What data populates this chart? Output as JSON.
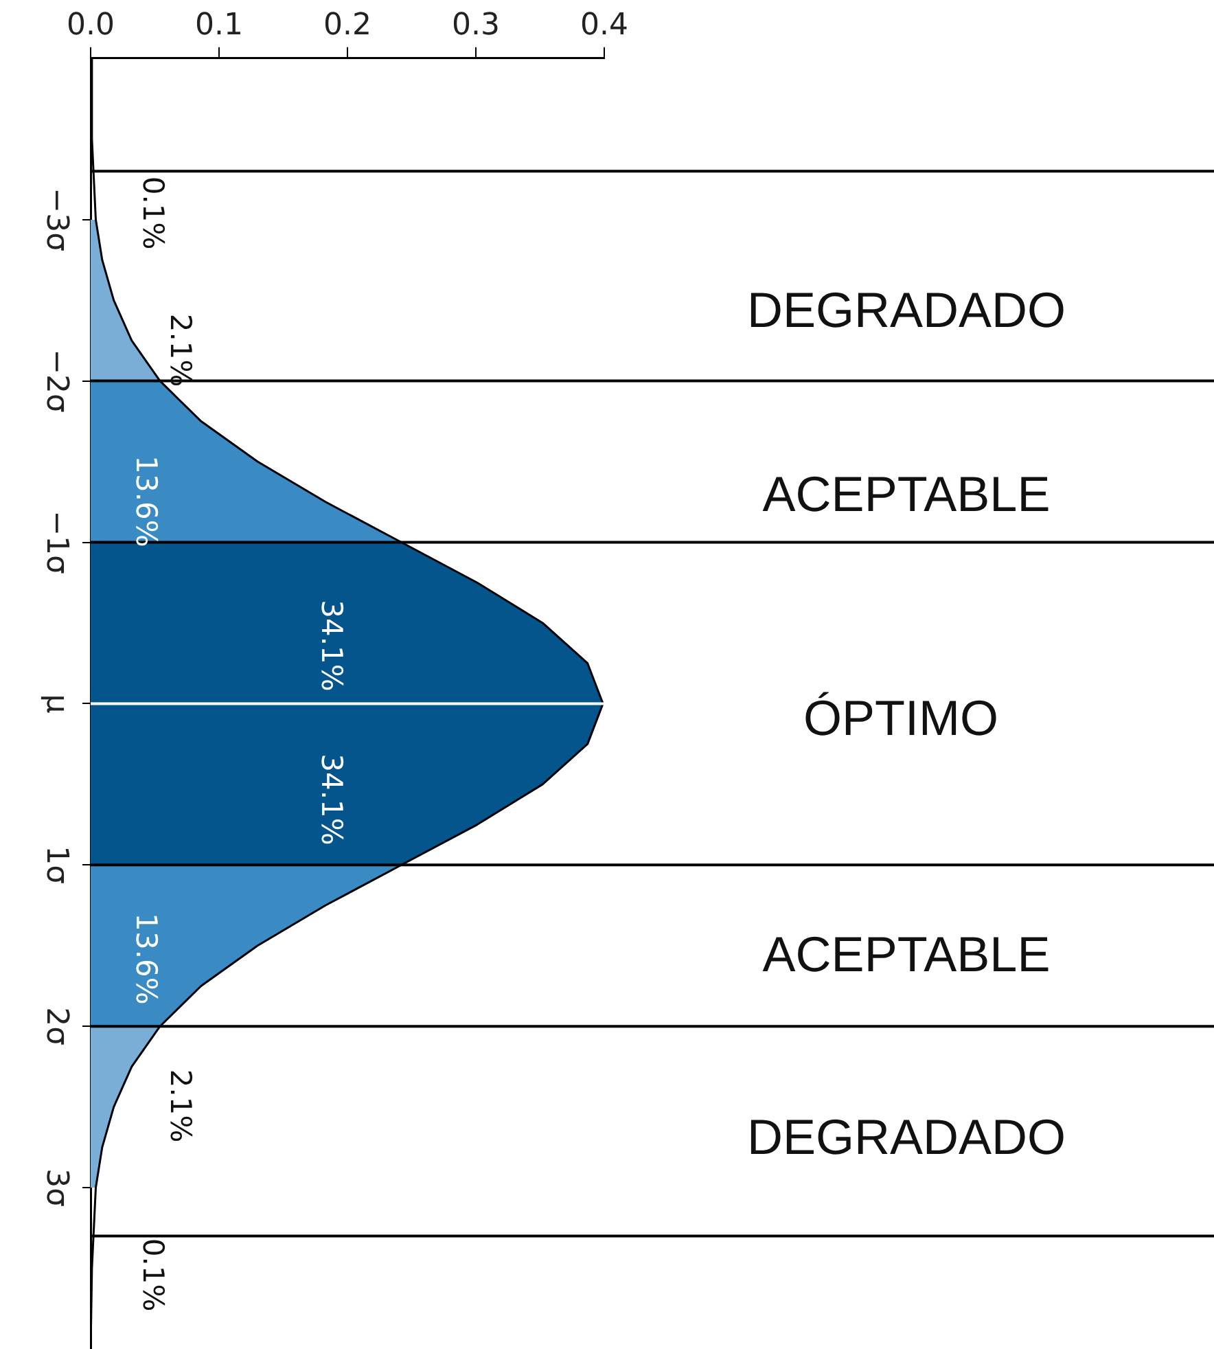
{
  "chart_data": {
    "type": "area",
    "orientation": "horizontal",
    "xlim": [
      0,
      0.4
    ],
    "xticks": [
      {
        "value": 0,
        "label": "0.0"
      },
      0.1,
      0.2,
      0.3,
      0.4
    ],
    "ylim": [
      4,
      -4
    ],
    "yticks": [
      {
        "value": -3,
        "label": "−3σ"
      },
      {
        "value": -2,
        "label": "−2σ"
      },
      {
        "value": -1,
        "label": "−1σ"
      },
      {
        "value": 0,
        "label": "μ"
      },
      {
        "value": 1,
        "label": "1σ"
      },
      {
        "value": 2,
        "label": "2σ"
      },
      {
        "value": 3,
        "label": "3σ"
      }
    ],
    "grid": false,
    "legend": false,
    "marker": "none",
    "series": [
      {
        "type": "line",
        "color": "#000000",
        "x": [
          -4,
          -3.5,
          -3,
          -2.75,
          -2.5,
          -2.25,
          -2,
          -1.75,
          -1.5,
          -1.25,
          -1,
          -0.75,
          -0.5,
          -0.25,
          0,
          0.25,
          0.5,
          0.75,
          1,
          1.25,
          1.5,
          1.75,
          2,
          2.25,
          2.5,
          2.75,
          3,
          3.5,
          4
        ],
        "values": [
          0.0,
          0.001,
          0.004,
          0.009,
          0.018,
          0.032,
          0.054,
          0.086,
          0.13,
          0.183,
          0.242,
          0.301,
          0.352,
          0.387,
          0.399,
          0.387,
          0.352,
          0.301,
          0.242,
          0.183,
          0.13,
          0.086,
          0.054,
          0.032,
          0.018,
          0.009,
          0.004,
          0.001,
          0.0
        ]
      },
      {
        "type": "area",
        "color": "#7aaed6",
        "x": [
          -3,
          -2.75,
          -2.5,
          -2.25,
          -2
        ],
        "values": [
          0.004,
          0.009,
          0.018,
          0.032,
          0.054
        ]
      },
      {
        "type": "area",
        "color": "#3a8bc4",
        "x": [
          -2,
          -1.75,
          -1.5,
          -1.25,
          -1
        ],
        "values": [
          0.054,
          0.086,
          0.13,
          0.183,
          0.242
        ]
      },
      {
        "type": "area",
        "color": "#03558c",
        "x": [
          -1,
          -0.75,
          -0.5,
          -0.25,
          0,
          0.25,
          0.5,
          0.75,
          1
        ],
        "values": [
          0.242,
          0.301,
          0.352,
          0.387,
          0.399,
          0.387,
          0.352,
          0.301,
          0.242
        ]
      },
      {
        "type": "area",
        "color": "#3a8bc4",
        "x": [
          1,
          1.25,
          1.5,
          1.75,
          2
        ],
        "values": [
          0.242,
          0.183,
          0.13,
          0.086,
          0.054
        ]
      },
      {
        "type": "area",
        "color": "#7aaed6",
        "x": [
          2,
          2.25,
          2.5,
          2.75,
          3
        ],
        "values": [
          0.054,
          0.032,
          0.018,
          0.009,
          0.004
        ]
      }
    ],
    "ref_lines": [
      {
        "axis": "y",
        "value": -3.3,
        "color": "#000000"
      },
      {
        "axis": "y",
        "value": -2,
        "color": "#000000"
      },
      {
        "axis": "y",
        "value": -1,
        "color": "#000000"
      },
      {
        "axis": "y",
        "value": 0,
        "color": "#ffffff"
      },
      {
        "axis": "y",
        "value": 1,
        "color": "#000000"
      },
      {
        "axis": "y",
        "value": 2,
        "color": "#000000"
      },
      {
        "axis": "y",
        "value": 3.3,
        "color": "#000000"
      }
    ],
    "annotations": [
      "0.1%",
      "2.1%",
      "13.6%",
      "34.1%",
      "34.1%",
      "13.6%",
      "2.1%",
      "0.1%",
      "DEGRADADO",
      "ACEPTABLE",
      "ÓPTIMO",
      "ACEPTABLE",
      "DEGRADADO"
    ]
  }
}
